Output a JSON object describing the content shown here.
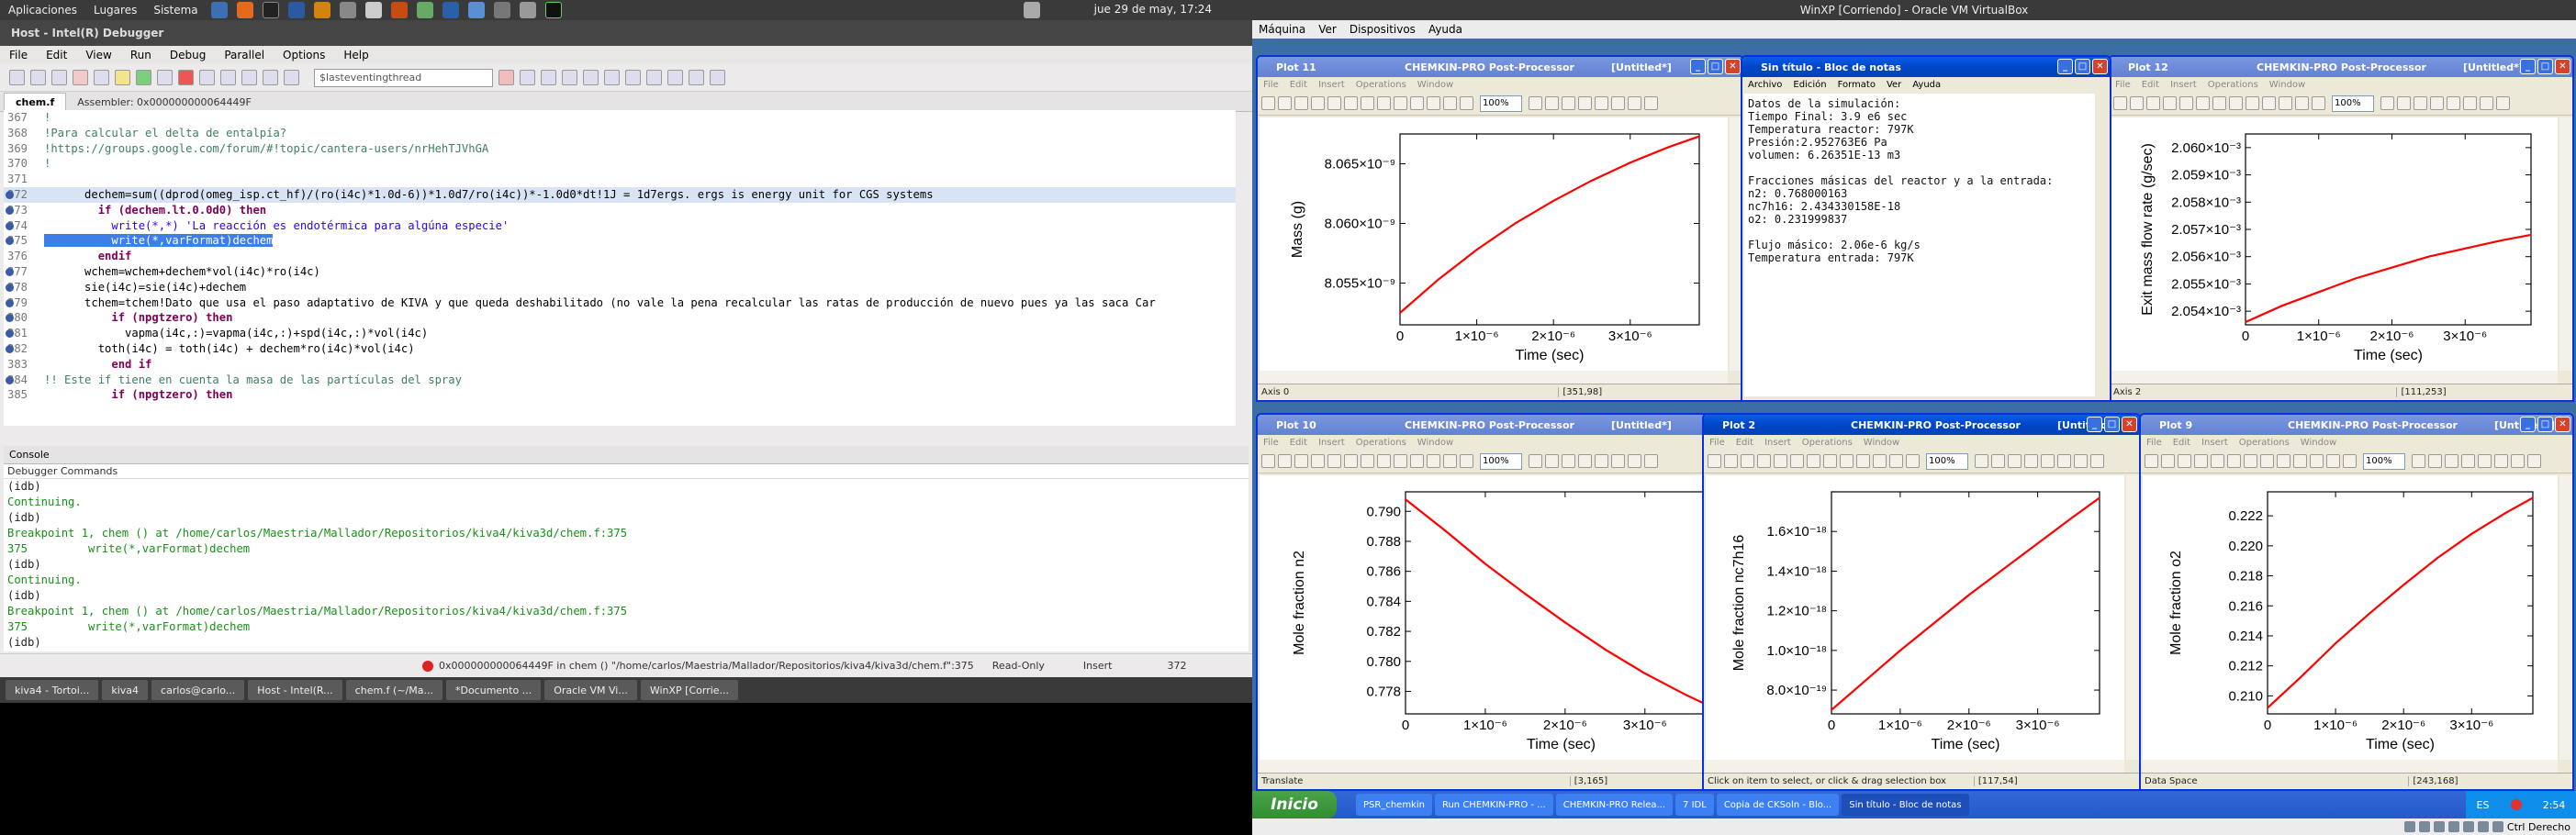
{
  "top_panel": {
    "menus": [
      "Aplicaciones",
      "Lugares",
      "Sistema"
    ],
    "clock": "jue 29 de may, 17:24"
  },
  "ide": {
    "title": "Host - Intel(R) Debugger",
    "menu": [
      "File",
      "Edit",
      "View",
      "Run",
      "Debug",
      "Parallel",
      "Options",
      "Help"
    ],
    "thread_combo": "$lasteventingthread",
    "tabs": [
      "chem.f",
      "Assembler: 0x000000000064449F"
    ],
    "code": [
      {
        "n": "367",
        "t": "!",
        "c": "cm"
      },
      {
        "n": "368",
        "t": "!Para calcular el delta de entalpía?",
        "c": "cm"
      },
      {
        "n": "369",
        "t": "!https://groups.google.com/forum/#!topic/cantera-users/nrHehTJVhGA",
        "c": "cm"
      },
      {
        "n": "370",
        "t": "!",
        "c": "cm"
      },
      {
        "n": "371",
        "t": "",
        "c": ""
      },
      {
        "n": "372",
        "t": "      dechem=sum((dprod(omeg_isp.ct_hf)/(ro(i4c)*1.0d-6))*1.0d7/ro(i4c))*-1.0d0*dt!1J = 1d7ergs. ergs is energy unit for CGS systems",
        "c": "cur",
        "bp": true
      },
      {
        "n": "373",
        "t": "        if (dechem.lt.0.0d0) then",
        "c": "kw",
        "bp": true
      },
      {
        "n": "374",
        "t": "          write(*,*) 'La reacción es endotérmica para algúna especie'",
        "c": "st",
        "bp": true
      },
      {
        "n": "375",
        "t": "          write(*,varFormat)dechem",
        "c": "hl",
        "bp": true
      },
      {
        "n": "376",
        "t": "        endif",
        "c": "kw"
      },
      {
        "n": "377",
        "t": "      wchem=wchem+dechem*vol(i4c)*ro(i4c)",
        "c": "",
        "bp": true
      },
      {
        "n": "378",
        "t": "      sie(i4c)=sie(i4c)+dechem",
        "c": "",
        "bp": true
      },
      {
        "n": "379",
        "t": "      tchem=tchem!Dato que usa el paso adaptativo de KIVA y que queda deshabilitado (no vale la pena recalcular las ratas de producción de nuevo pues ya las saca Car",
        "c": "",
        "bp": true
      },
      {
        "n": "380",
        "t": "          if (npgtzero) then",
        "c": "kw",
        "bp": true
      },
      {
        "n": "381",
        "t": "            vapma(i4c,:)=vapma(i4c,:)+spd(i4c,:)*vol(i4c)",
        "c": "",
        "bp": true
      },
      {
        "n": "382",
        "t": "        toth(i4c) = toth(i4c) + dechem*ro(i4c)*vol(i4c)",
        "c": "",
        "bp": true
      },
      {
        "n": "383",
        "t": "          end if",
        "c": "kw"
      },
      {
        "n": "384",
        "t": "!! Este if tiene en cuenta la masa de las partículas del spray",
        "c": "cm",
        "bp": true
      },
      {
        "n": "385",
        "t": "          if (npgtzero) then",
        "c": "kw"
      }
    ],
    "console_title": "Console",
    "console_sub": "Debugger Commands",
    "console": [
      {
        "t": "(idb)",
        "k": "blk"
      },
      {
        "t": "Continuing.",
        "k": ""
      },
      {
        "t": "(idb)",
        "k": "blk"
      },
      {
        "t": "Breakpoint 1, chem () at /home/carlos/Maestria/Mallador/Repositorios/kiva4/kiva3d/chem.f:375",
        "k": ""
      },
      {
        "t": "375         write(*,varFormat)dechem",
        "k": ""
      },
      {
        "t": "(idb)",
        "k": "blk"
      },
      {
        "t": "Continuing.",
        "k": ""
      },
      {
        "t": "(idb)",
        "k": "blk"
      },
      {
        "t": "Breakpoint 1, chem () at /home/carlos/Maestria/Mallador/Repositorios/kiva4/kiva3d/chem.f:375",
        "k": ""
      },
      {
        "t": "375         write(*,varFormat)dechem",
        "k": ""
      },
      {
        "t": "(idb)",
        "k": "blk"
      }
    ],
    "status": {
      "loc": "0x000000000064449F in chem () \"/home/carlos/Maestria/Mallador/Repositorios/kiva4/kiva3d/chem.f\":375",
      "mode": "Read-Only",
      "ins": "Insert",
      "line": "372"
    }
  },
  "gnome_taskbar": [
    "kiva4 - Tortoi...",
    "kiva4",
    "carlos@carlo...",
    "Host - Intel(R...",
    "chem.f (~/Ma...",
    "*Documento ...",
    "Oracle VM Vi...",
    "WinXP [Corrie..."
  ],
  "vbox": {
    "title": "WinXP [Corriendo] - Oracle VM VirtualBox",
    "menu": [
      "Máquina",
      "Ver",
      "Dispositivos",
      "Ayuda"
    ],
    "status_right": "Ctrl Derecho"
  },
  "xp": {
    "app_title": "CHEMKIN-PRO Post-Processor",
    "untitled": "[Untitled*]",
    "menu": [
      "File",
      "Edit",
      "Insert",
      "Operations",
      "Window"
    ],
    "zoom": "100%",
    "notepad": {
      "title": "Sin título - Bloc de notas",
      "menu": [
        "Archivo",
        "Edición",
        "Formato",
        "Ver",
        "Ayuda"
      ],
      "text": "Datos de la simulación:\nTiempo Final: 3.9 e6 sec\nTemperatura reactor: 797K\nPresión:2.952763E6 Pa\nvolumen: 6.26351E-13 m3\n\nFracciones másicas del reactor y a la entrada:\nn2: 0.768000163\nnc7h16: 2.434330158E-18\no2: 0.231999837\n\nFlujo másico: 2.06e-6 kg/s\nTemperatura entrada: 797K"
    },
    "taskbar": [
      "PSR_chemkin",
      "Run CHEMKIN-PRO - ...",
      "CHEMKIN-PRO Relea...",
      "7 IDL",
      "Copia de CKSoln - Blo...",
      "Sin título - Bloc de notas"
    ],
    "start": "Inicio",
    "tray_lang": "ES",
    "tray_time": "2:54"
  },
  "plots": [
    {
      "title": "Plot 11",
      "status_left": "Axis 0",
      "status_right": "[351,98]",
      "chart_data": {
        "type": "line",
        "xlabel": "Time (sec)",
        "ylabel": "Mass (g)",
        "xticks": [
          "0",
          "1×10⁻⁶",
          "2×10⁻⁶",
          "3×10⁻⁶"
        ],
        "xlim": [
          0,
          3.9e-06
        ],
        "yticks": [
          "8.055×10⁻⁹",
          "8.060×10⁻⁹",
          "8.065×10⁻⁹"
        ],
        "ytickvals": [
          8.055e-09,
          8.06e-09,
          8.065e-09
        ],
        "ylim": [
          8.0515e-09,
          8.0675e-09
        ],
        "x": [
          0,
          5e-07,
          1e-06,
          1.5e-06,
          2e-06,
          2.5e-06,
          3e-06,
          3.5e-06,
          3.9e-06
        ],
        "y": [
          8.0525e-09,
          8.0553e-09,
          8.0578e-09,
          8.06e-09,
          8.0619e-09,
          8.0636e-09,
          8.0651e-09,
          8.0664e-09,
          8.0673e-09
        ],
        "color": "#ff0000"
      }
    },
    {
      "title": "Plot 12",
      "status_left": "Axis 2",
      "status_right": "[111,253]",
      "chart_data": {
        "type": "line",
        "xlabel": "Time (sec)",
        "ylabel": "Exit mass flow rate (g/sec)",
        "xticks": [
          "0",
          "1×10⁻⁶",
          "2×10⁻⁶",
          "3×10⁻⁶"
        ],
        "xlim": [
          0,
          3.9e-06
        ],
        "yticks": [
          "2.054×10⁻³",
          "2.055×10⁻³",
          "2.056×10⁻³",
          "2.057×10⁻³",
          "2.058×10⁻³",
          "2.059×10⁻³",
          "2.060×10⁻³"
        ],
        "ytickvals": [
          0.002054,
          0.002055,
          0.002056,
          0.002057,
          0.002058,
          0.002059,
          0.00206
        ],
        "ylim": [
          0.0020535,
          0.0020605
        ],
        "x": [
          0,
          5e-07,
          1e-06,
          1.5e-06,
          2e-06,
          2.5e-06,
          3e-06,
          3.5e-06,
          3.9e-06
        ],
        "y": [
          0.0020536,
          0.0020542,
          0.0020547,
          0.0020552,
          0.0020556,
          0.002056,
          0.0020563,
          0.0020566,
          0.0020568
        ],
        "color": "#ff0000"
      }
    },
    {
      "title": "Plot 10",
      "status_left": "Translate",
      "status_right": "[3,165]",
      "chart_data": {
        "type": "line",
        "xlabel": "Time (sec)",
        "ylabel": "Mole fraction n2",
        "xticks": [
          "0",
          "1×10⁻⁶",
          "2×10⁻⁶",
          "3×10⁻⁶"
        ],
        "xlim": [
          0,
          3.9e-06
        ],
        "yticks": [
          "0.778",
          "0.780",
          "0.782",
          "0.784",
          "0.786",
          "0.788",
          "0.790"
        ],
        "ytickvals": [
          0.778,
          0.78,
          0.782,
          0.784,
          0.786,
          0.788,
          0.79
        ],
        "ylim": [
          0.7765,
          0.7913
        ],
        "x": [
          0,
          5e-07,
          1e-06,
          1.5e-06,
          2e-06,
          2.5e-06,
          3e-06,
          3.5e-06,
          3.9e-06
        ],
        "y": [
          0.7908,
          0.7887,
          0.7865,
          0.7845,
          0.7826,
          0.7808,
          0.7792,
          0.7778,
          0.7768
        ],
        "color": "#ff0000"
      }
    },
    {
      "title": "Plot 2",
      "status_left": "Click on item to select, or click & drag selection box",
      "status_right": "[117,54]",
      "chart_data": {
        "type": "line",
        "xlabel": "Time (sec)",
        "ylabel": "Mole fraction nc7h16",
        "xticks": [
          "0",
          "1×10⁻⁶",
          "2×10⁻⁶",
          "3×10⁻⁶"
        ],
        "xlim": [
          0,
          3.9e-06
        ],
        "yticks": [
          "8.0×10⁻¹⁹",
          "1.0×10⁻¹⁸",
          "1.2×10⁻¹⁸",
          "1.4×10⁻¹⁸",
          "1.6×10⁻¹⁸"
        ],
        "ytickvals": [
          8e-19,
          1e-18,
          1.2e-18,
          1.4e-18,
          1.6e-18
        ],
        "ylim": [
          6.8e-19,
          1.8e-18
        ],
        "x": [
          0,
          5e-07,
          1e-06,
          1.5e-06,
          2e-06,
          2.5e-06,
          3e-06,
          3.5e-06,
          3.9e-06
        ],
        "y": [
          7e-19,
          8.5e-19,
          1e-18,
          1.14e-18,
          1.28e-18,
          1.41e-18,
          1.54e-18,
          1.67e-18,
          1.77e-18
        ],
        "color": "#ff0000"
      }
    },
    {
      "title": "Plot 9",
      "status_left": "Data Space",
      "status_right": "[243,168]",
      "chart_data": {
        "type": "line",
        "xlabel": "Time (sec)",
        "ylabel": "Mole fraction o2",
        "xticks": [
          "0",
          "1×10⁻⁶",
          "2×10⁻⁶",
          "3×10⁻⁶"
        ],
        "xlim": [
          0,
          3.9e-06
        ],
        "yticks": [
          "0.210",
          "0.212",
          "0.214",
          "0.216",
          "0.218",
          "0.220",
          "0.222"
        ],
        "ytickvals": [
          0.21,
          0.212,
          0.214,
          0.216,
          0.218,
          0.22,
          0.222
        ],
        "ylim": [
          0.2088,
          0.2236
        ],
        "x": [
          0,
          5e-07,
          1e-06,
          1.5e-06,
          2e-06,
          2.5e-06,
          3e-06,
          3.5e-06,
          3.9e-06
        ],
        "y": [
          0.2092,
          0.2113,
          0.2135,
          0.2155,
          0.2174,
          0.2192,
          0.2208,
          0.2222,
          0.2232
        ],
        "color": "#ff0000"
      }
    }
  ]
}
